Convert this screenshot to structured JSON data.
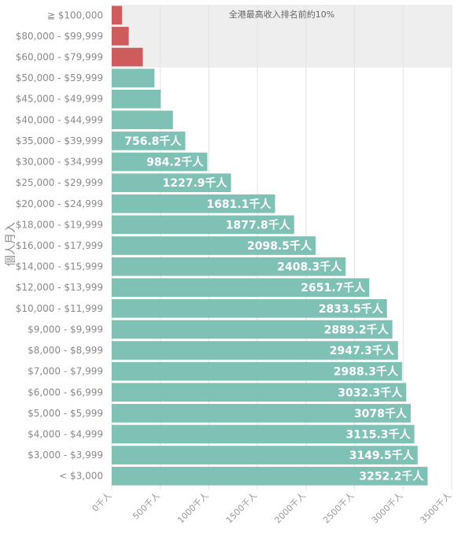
{
  "chart_data": {
    "type": "bar",
    "orientation": "horizontal",
    "ylabel": "個人月入",
    "xlim": [
      0,
      3500
    ],
    "x_ticks": [
      0,
      500,
      1000,
      1500,
      2000,
      2500,
      3000,
      3500
    ],
    "x_tick_labels": [
      "0千人",
      "500千人",
      "1000千人",
      "1500千人",
      "2000千人",
      "2500千人",
      "3000千人",
      "3500千人"
    ],
    "annotation": "全港最高收入排名前約10%",
    "highlight_color": "#cf5c5c",
    "bar_color": "#7fc1b5",
    "highlight_band_color": "#eeeeee",
    "highlight_count": 3,
    "categories": [
      "≧ $100,000",
      "$80,000 - $99,999",
      "$60,000 - $79,999",
      "$50,000 - $59,999",
      "$45,000 - $49,999",
      "$40,000 - $44,999",
      "$35,000 - $39,999",
      "$30,000 - $34,999",
      "$25,000 - $29,999",
      "$20,000 - $24,999",
      "$18,000 - $19,999",
      "$16,000 - $17,999",
      "$14,000 - $15,999",
      "$12,000 - $13,999",
      "$10,000 - $11,999",
      "$9,000 - $9,999",
      "$8,000 - $8,999",
      "$7,000 - $7,999",
      "$6,000 - $6,999",
      "$5,000 - $5,999",
      "$4,000 - $4,999",
      "$3,000 - $3,999",
      "< $3,000"
    ],
    "values": [
      105,
      175,
      320,
      440,
      505,
      630,
      756.8,
      984.2,
      1227.9,
      1681.1,
      1877.8,
      2098.5,
      2408.3,
      2651.7,
      2833.5,
      2889.2,
      2947.3,
      2988.3,
      3032.3,
      3078,
      3115.3,
      3149.5,
      3252.2
    ],
    "data_labels": [
      "",
      "",
      "",
      "",
      "",
      "",
      "756.8千人",
      "984.2千人",
      "1227.9千人",
      "1681.1千人",
      "1877.8千人",
      "2098.5千人",
      "2408.3千人",
      "2651.7千人",
      "2833.5千人",
      "2889.2千人",
      "2947.3千人",
      "2988.3千人",
      "3032.3千人",
      "3078千人",
      "3115.3千人",
      "3149.5千人",
      "3252.2千人"
    ]
  }
}
